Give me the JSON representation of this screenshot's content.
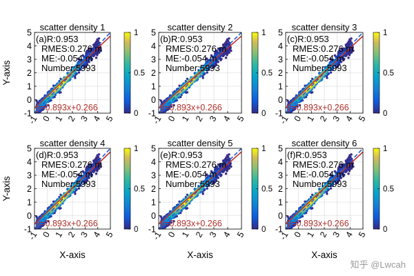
{
  "watermark": "知乎 @Lwcah",
  "colorbar_ticks": [
    "0",
    "0.5",
    "1"
  ],
  "chart_data": [
    {
      "type": "scatter",
      "title": "scatter density 1",
      "panel_label": "(a)",
      "stats": [
        "R:0.953",
        "RMES:0.276 m",
        "ME:-0.054 m",
        "Number:5993"
      ],
      "equation": "y=0.893x+0.266",
      "fit": {
        "slope": 0.893,
        "intercept": 0.266
      },
      "xlim": [
        -1,
        5
      ],
      "ylim": [
        -1,
        5
      ],
      "xticks": [
        "-1",
        "0",
        "1",
        "2",
        "3",
        "4",
        "5"
      ],
      "yticks": [
        "-1",
        "0",
        "1",
        "2",
        "3",
        "4",
        "5"
      ],
      "xlabel": "",
      "ylabel": "Y-axis",
      "grid": true,
      "colormap": "parula",
      "colorbar_range": [
        0,
        1
      ]
    },
    {
      "type": "scatter",
      "title": "scatter density 2",
      "panel_label": "(b)",
      "stats": [
        "R:0.953",
        "RMES:0.276 m",
        "ME:-0.054 m",
        "Number:5993"
      ],
      "equation": "y=0.893x+0.266",
      "fit": {
        "slope": 0.893,
        "intercept": 0.266
      },
      "xlim": [
        -1,
        5
      ],
      "ylim": [
        -1,
        5
      ],
      "xticks": [
        "-1",
        "0",
        "1",
        "2",
        "3",
        "4",
        "5"
      ],
      "yticks": [
        "-1",
        "0",
        "1",
        "2",
        "3",
        "4",
        "5"
      ],
      "xlabel": "",
      "ylabel": "",
      "grid": true,
      "colormap": "parula",
      "colorbar_range": [
        0,
        1
      ]
    },
    {
      "type": "scatter",
      "title": "scatter density 3",
      "panel_label": "(c)",
      "stats": [
        "R:0.953",
        "RMES:0.276 m",
        "ME:-0.054 m",
        "Number:5993"
      ],
      "equation": "y=0.893x+0.266",
      "fit": {
        "slope": 0.893,
        "intercept": 0.266
      },
      "xlim": [
        -1,
        5
      ],
      "ylim": [
        -1,
        5
      ],
      "xticks": [
        "-1",
        "0",
        "1",
        "2",
        "3",
        "4",
        "5"
      ],
      "yticks": [
        "-1",
        "0",
        "1",
        "2",
        "3",
        "4",
        "5"
      ],
      "xlabel": "",
      "ylabel": "",
      "grid": true,
      "colormap": "parula",
      "colorbar_range": [
        0,
        1
      ]
    },
    {
      "type": "scatter",
      "title": "scatter density 4",
      "panel_label": "(d)",
      "stats": [
        "R:0.953",
        "RMES:0.276 m",
        "ME:-0.054 m",
        "Number:5993"
      ],
      "equation": "y=0.893x+0.266",
      "fit": {
        "slope": 0.893,
        "intercept": 0.266
      },
      "xlim": [
        -1,
        5
      ],
      "ylim": [
        -1,
        5
      ],
      "xticks": [
        "-1",
        "0",
        "1",
        "2",
        "3",
        "4",
        "5"
      ],
      "yticks": [
        "-1",
        "0",
        "1",
        "2",
        "3",
        "4",
        "5"
      ],
      "xlabel": "X-axis",
      "ylabel": "Y-axis",
      "grid": true,
      "colormap": "parula",
      "colorbar_range": [
        0,
        1
      ]
    },
    {
      "type": "scatter",
      "title": "scatter density 5",
      "panel_label": "(e)",
      "stats": [
        "R:0.953",
        "RMES:0.276 m",
        "ME:-0.054 m",
        "Number:5993"
      ],
      "equation": "y=0.893x+0.266",
      "fit": {
        "slope": 0.893,
        "intercept": 0.266
      },
      "xlim": [
        -1,
        5
      ],
      "ylim": [
        -1,
        5
      ],
      "xticks": [
        "-1",
        "0",
        "1",
        "2",
        "3",
        "4",
        "5"
      ],
      "yticks": [
        "-1",
        "0",
        "1",
        "2",
        "3",
        "4",
        "5"
      ],
      "xlabel": "X-axis",
      "ylabel": "",
      "grid": true,
      "colormap": "parula",
      "colorbar_range": [
        0,
        1
      ]
    },
    {
      "type": "scatter",
      "title": "scatter density 6",
      "panel_label": "(f)",
      "stats": [
        "R:0.953",
        "RMES:0.276 m",
        "ME:-0.054 m",
        "Number:5993"
      ],
      "equation": "y=0.893x+0.266",
      "fit": {
        "slope": 0.893,
        "intercept": 0.266
      },
      "xlim": [
        -1,
        5
      ],
      "ylim": [
        -1,
        5
      ],
      "xticks": [
        "-1",
        "0",
        "1",
        "2",
        "3",
        "4",
        "5"
      ],
      "yticks": [
        "-1",
        "0",
        "1",
        "2",
        "3",
        "4",
        "5"
      ],
      "xlabel": "X-axis",
      "ylabel": "",
      "grid": true,
      "colormap": "parula",
      "colorbar_range": [
        0,
        1
      ]
    }
  ]
}
